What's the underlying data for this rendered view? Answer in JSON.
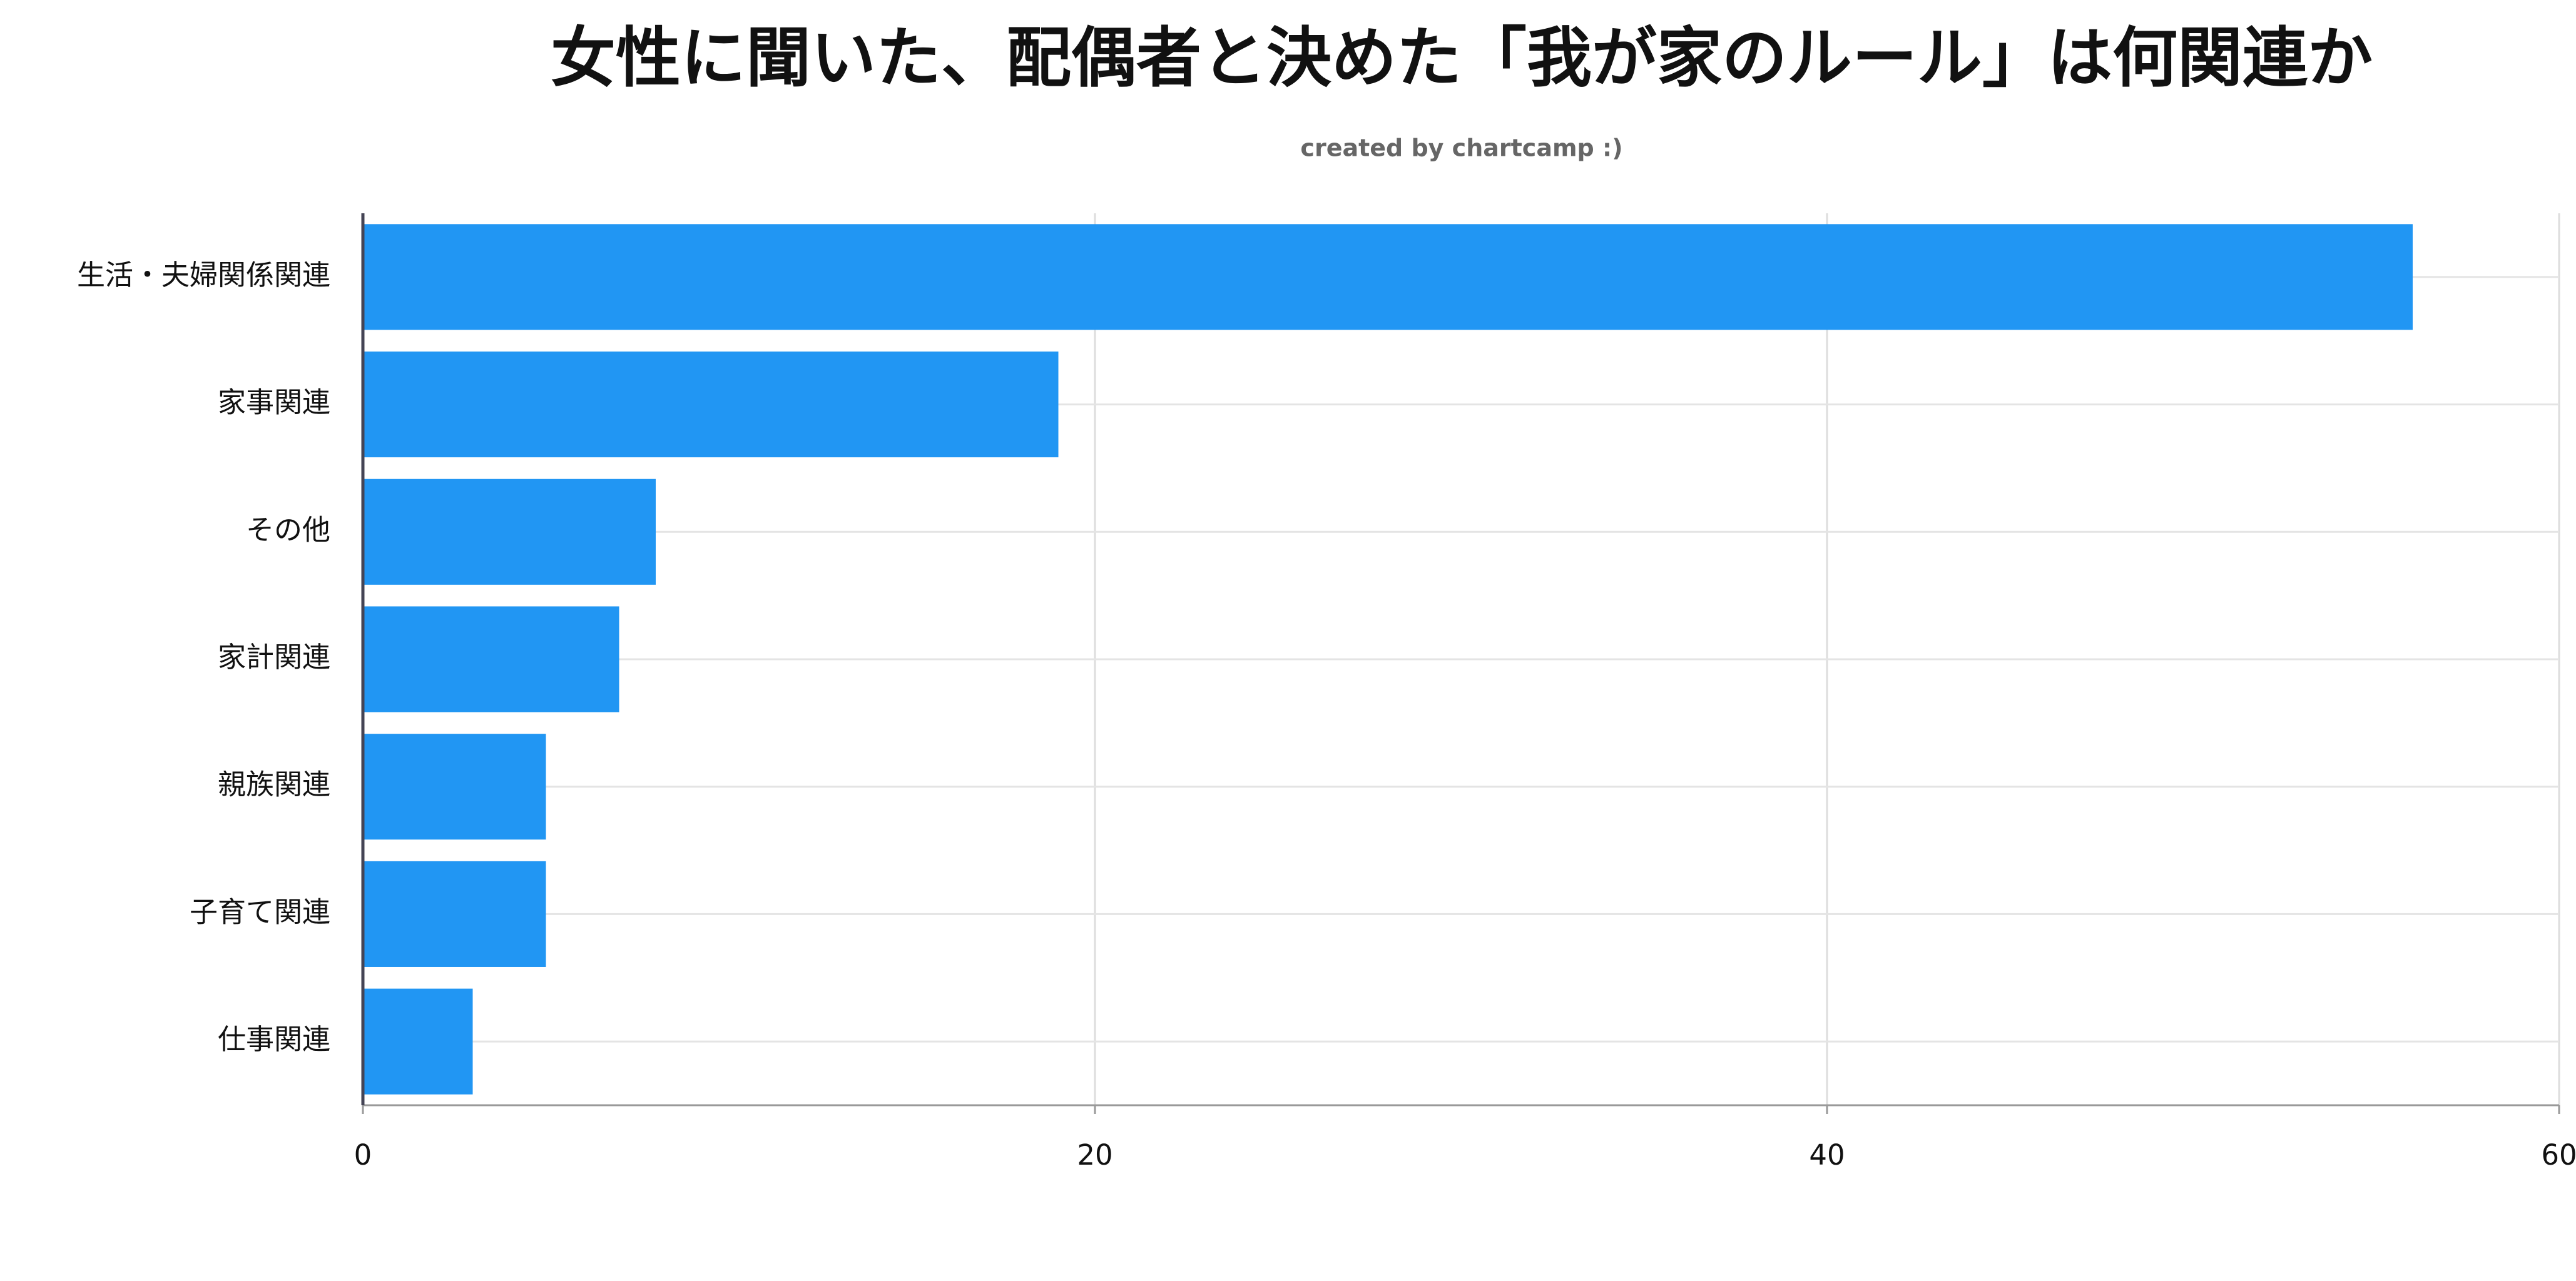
{
  "chart_data": {
    "type": "bar",
    "orientation": "horizontal",
    "title": "女性に聞いた、配偶者と決めた「我が家のルール」は何関連か",
    "subtitle": "created by chartcamp :)",
    "categories": [
      "生活・夫婦関係関連",
      "家事関連",
      "その他",
      "家計関連",
      "親族関連",
      "子育て関連",
      "仕事関連"
    ],
    "values": [
      56,
      19,
      8,
      7,
      5,
      5,
      3
    ],
    "color": "#2196f3",
    "xlim": [
      0,
      60
    ],
    "xticks": [
      0,
      20,
      40,
      60
    ],
    "grid": true
  }
}
